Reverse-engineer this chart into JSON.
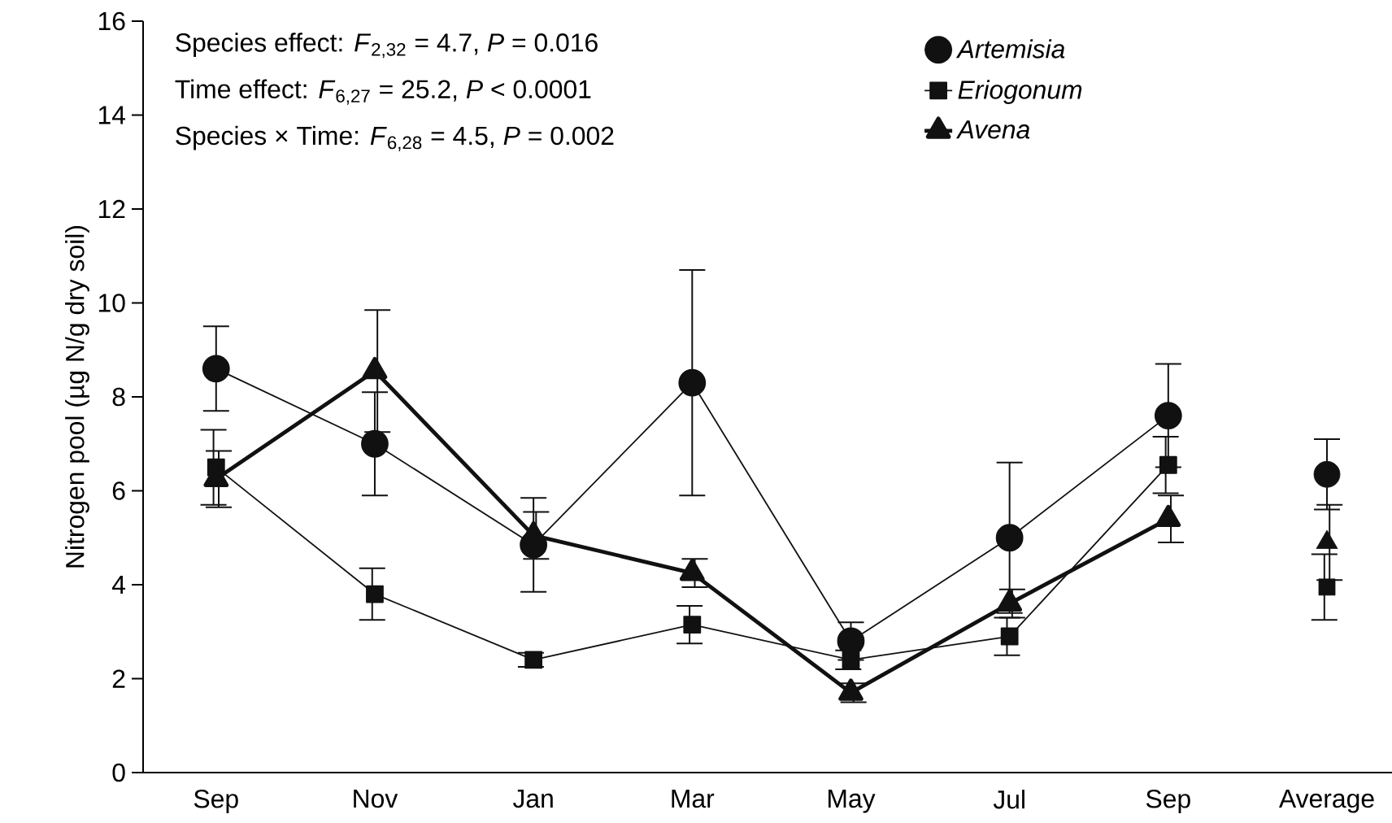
{
  "chart_data": {
    "type": "line",
    "ylabel": "Nitrogen pool (µg N/g dry soil)",
    "categories": [
      "Sep",
      "Nov",
      "Jan",
      "Mar",
      "May",
      "Jul",
      "Sep",
      "Average"
    ],
    "ylim": [
      0,
      16
    ],
    "yticks": [
      0,
      2,
      4,
      6,
      8,
      10,
      12,
      14,
      16
    ],
    "legend": "top right",
    "grid": false,
    "line_style": "solid",
    "annotations": [
      "Species effect: *F*$_{2,32}$ = 4.7, *P* = 0.016",
      "Time effect: *F*$_{6,27}$ = 25.2, *P* < 0.0001",
      "Species × Time: *F*$_{6,28}$ = 4.5, *P* = 0.002"
    ],
    "series": [
      {
        "name": "Artemisia",
        "type": "line",
        "marker": "circle",
        "color": "#111111",
        "values": [
          8.6,
          7.0,
          4.85,
          8.3,
          2.8,
          5.0,
          7.6,
          null
        ],
        "errors": [
          0.9,
          1.1,
          1.0,
          2.4,
          0.4,
          1.6,
          1.1,
          null
        ]
      },
      {
        "name": "Eriogonum",
        "type": "line",
        "marker": "square",
        "color": "#111111",
        "values": [
          6.5,
          3.8,
          2.4,
          3.15,
          2.4,
          2.9,
          6.55,
          null
        ],
        "errors": [
          0.8,
          0.55,
          0.15,
          0.4,
          0.2,
          0.4,
          0.6,
          null
        ]
      },
      {
        "name": "Avena",
        "type": "line",
        "marker": "triangle",
        "color": "#111111",
        "values": [
          6.25,
          8.55,
          5.05,
          4.25,
          1.7,
          3.6,
          5.4,
          null
        ],
        "errors": [
          0.6,
          1.3,
          0.5,
          0.3,
          0.2,
          0.3,
          0.5,
          null
        ]
      },
      {
        "type": "scatter",
        "marker": "circle",
        "color": "#111111",
        "x": [
          "Average"
        ],
        "values": [
          6.35
        ],
        "errors": [
          0.75
        ]
      },
      {
        "type": "scatter",
        "marker": "square",
        "color": "#111111",
        "x": [
          "Average"
        ],
        "values": [
          3.95
        ],
        "errors": [
          0.7
        ]
      },
      {
        "type": "scatter",
        "marker": "triangle",
        "color": "#111111",
        "x": [
          "Average"
        ],
        "values": [
          4.9
        ],
        "errors": [
          0.8
        ]
      }
    ]
  }
}
